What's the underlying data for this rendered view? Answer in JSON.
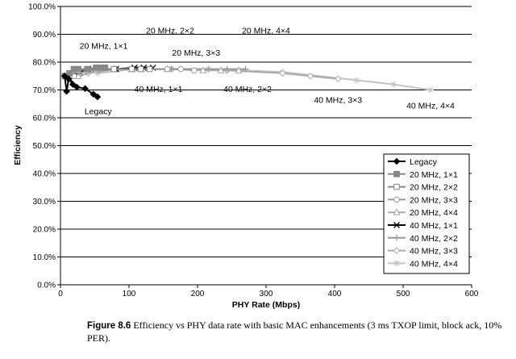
{
  "chart_data": {
    "type": "line",
    "xlabel": "PHY Rate (Mbps)",
    "ylabel": "Efficiency",
    "xlim": [
      0,
      600
    ],
    "ylim": [
      0,
      100
    ],
    "xticks": [
      "0",
      "100",
      "200",
      "300",
      "400",
      "500",
      "600"
    ],
    "yticks": [
      "0.0%",
      "10.0%",
      "20.0%",
      "30.0%",
      "40.0%",
      "50.0%",
      "60.0%",
      "70.0%",
      "80.0%",
      "90.0%",
      "100.0%"
    ],
    "grid": "horizontal",
    "legend_position": "bottom-right",
    "series": [
      {
        "name": "Legacy",
        "color": "#000000",
        "marker": "diamond-filled",
        "x": [
          6,
          9,
          12,
          18,
          24,
          36,
          48,
          54
        ],
        "y": [
          75,
          69.5,
          74,
          72,
          71,
          70.5,
          68.5,
          67.5
        ]
      },
      {
        "name": "20 MHz, 1×1",
        "color": "#888888",
        "marker": "square-filled",
        "x": [
          6.5,
          13,
          19.5,
          26,
          39,
          52,
          58.5,
          65
        ],
        "y": [
          75,
          76,
          77.5,
          77.5,
          77.5,
          78,
          78,
          78
        ]
      },
      {
        "name": "20 MHz, 2×2",
        "color": "#888888",
        "marker": "square-open",
        "x": [
          13,
          26,
          39,
          52,
          78,
          104,
          117,
          130
        ],
        "y": [
          75,
          77,
          77.5,
          77.5,
          77.5,
          77.5,
          77.5,
          77.5
        ]
      },
      {
        "name": "20 MHz, 3×3",
        "color": "#999999",
        "marker": "circle-open",
        "x": [
          19.5,
          39,
          58.5,
          78,
          117,
          156,
          175.5,
          195
        ],
        "y": [
          75,
          77,
          77.5,
          77.5,
          77.5,
          77.5,
          77.5,
          77
        ]
      },
      {
        "name": "20 MHz, 4×4",
        "color": "#aaaaaa",
        "marker": "triangle-open",
        "x": [
          26,
          52,
          78,
          104,
          156,
          208,
          234,
          260
        ],
        "y": [
          75,
          77,
          77.5,
          77.5,
          77.5,
          77,
          77,
          77
        ]
      },
      {
        "name": "40 MHz, 1×1",
        "color": "#000000",
        "marker": "x",
        "x": [
          13.5,
          27,
          40.5,
          54,
          81,
          108,
          121.5,
          135
        ],
        "y": [
          74,
          76.5,
          77.5,
          77.5,
          77.5,
          78,
          78,
          78
        ]
      },
      {
        "name": "40 MHz, 2×2",
        "color": "#999999",
        "marker": "plus",
        "x": [
          27,
          54,
          81,
          108,
          162,
          216,
          243,
          270
        ],
        "y": [
          75,
          77,
          77.5,
          77.5,
          77.5,
          77.5,
          77.5,
          77.5
        ]
      },
      {
        "name": "40 MHz, 3×3",
        "color": "#aaaaaa",
        "marker": "diamond-open",
        "x": [
          40.5,
          81,
          121.5,
          162,
          243,
          324,
          364.5,
          405
        ],
        "y": [
          76,
          77.5,
          77.5,
          77.5,
          77,
          76,
          75,
          74
        ]
      },
      {
        "name": "40 MHz, 4×4",
        "color": "#c4c4c4",
        "marker": "asterisk",
        "x": [
          54,
          108,
          162,
          216,
          324,
          432,
          486,
          540
        ],
        "y": [
          76,
          77.5,
          77.5,
          77.5,
          76.5,
          73.5,
          72,
          70
        ]
      }
    ],
    "annotations": [
      {
        "text": "20 MHz, 2×2",
        "x": 160,
        "y": 91.5
      },
      {
        "text": "20 MHz, 4×4",
        "x": 300,
        "y": 91.5
      },
      {
        "text": "20 MHz, 1×1",
        "x": 63,
        "y": 86
      },
      {
        "text": "20 MHz, 3×3",
        "x": 198,
        "y": 83.5
      },
      {
        "text": "40 MHz, 1×1",
        "x": 143,
        "y": 70.5
      },
      {
        "text": "40 MHz, 2×2",
        "x": 273,
        "y": 70.5
      },
      {
        "text": "40 MHz, 3×3",
        "x": 405,
        "y": 66.5
      },
      {
        "text": "40 MHz, 4×4",
        "x": 540,
        "y": 64.5
      },
      {
        "text": "Legacy",
        "x": 55,
        "y": 62.5
      }
    ]
  },
  "caption": {
    "label": "Figure 8.6",
    "text": "Efficiency vs PHY data rate with basic MAC enhancements (3 ms TXOP limit, block ack, 10% PER)."
  }
}
